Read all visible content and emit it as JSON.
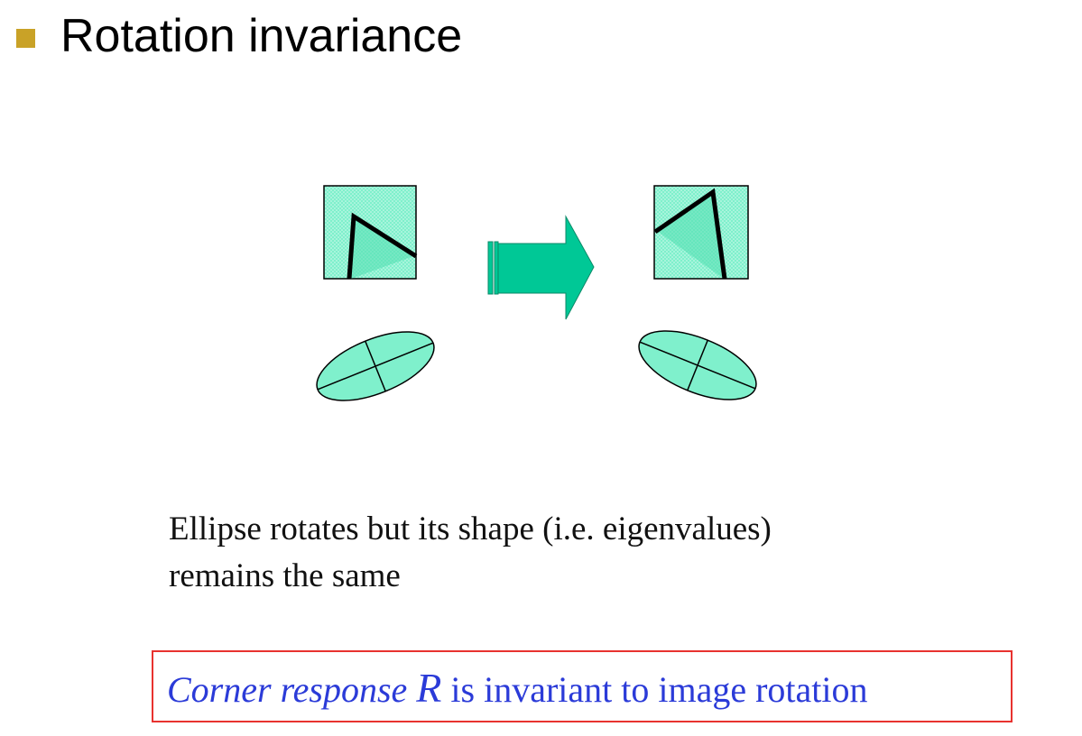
{
  "slide": {
    "title": "Rotation invariance",
    "caption_line1": "Ellipse rotates but its shape (i.e. eigenvalues)",
    "caption_line2": "remains the same",
    "callout": {
      "italic_part": "Corner response",
      "symbol": "R",
      "rest": "is invariant to image rotation"
    }
  },
  "colors": {
    "bullet": "#c9a227",
    "shape_fill": "#7ff0cc",
    "arrow_fill": "#00c896",
    "callout_border": "#e8322f",
    "callout_text": "#2b3bd8"
  }
}
